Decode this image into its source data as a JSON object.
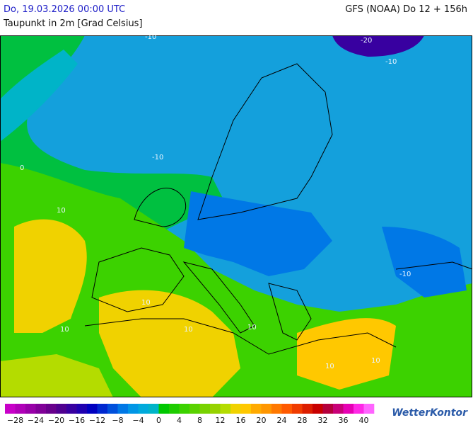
{
  "header": {
    "valid_time": "Do, 19.03.2026 00:00 UTC",
    "model": "GFS (NOAA) Do 12 + 156h",
    "parameter": "Taupunkt in 2m [Grad Celsius]"
  },
  "map": {
    "contour_labels": [
      "-10",
      "-20",
      "-10",
      "0",
      "-10",
      "10",
      "-10",
      "10",
      "10",
      "10",
      "10",
      "10",
      "10"
    ]
  },
  "legend": {
    "labels": [
      "−28",
      "−24",
      "−20",
      "−16",
      "−12",
      "−8",
      "−4",
      "0",
      "4",
      "8",
      "12",
      "16",
      "20",
      "24",
      "28",
      "32",
      "36",
      "40"
    ],
    "colors": [
      "#c800c8",
      "#b000b8",
      "#9800a8",
      "#800098",
      "#68008c",
      "#500090",
      "#3800a0",
      "#2000b0",
      "#0000c0",
      "#0028d0",
      "#0050dc",
      "#0078e6",
      "#0096e6",
      "#00aadc",
      "#00b4c8",
      "#00c800",
      "#1ecc00",
      "#3cd200",
      "#5ad200",
      "#78d200",
      "#96d200",
      "#b4dc00",
      "#f0d200",
      "#ffc800",
      "#ffaa00",
      "#ff9600",
      "#ff7800",
      "#ff5a00",
      "#f03c00",
      "#dc1e00",
      "#c80000",
      "#b4003c",
      "#c80078",
      "#e600b4",
      "#ff28e6",
      "#ff64ff"
    ]
  },
  "footer": {
    "brand": "WetterKontor"
  }
}
